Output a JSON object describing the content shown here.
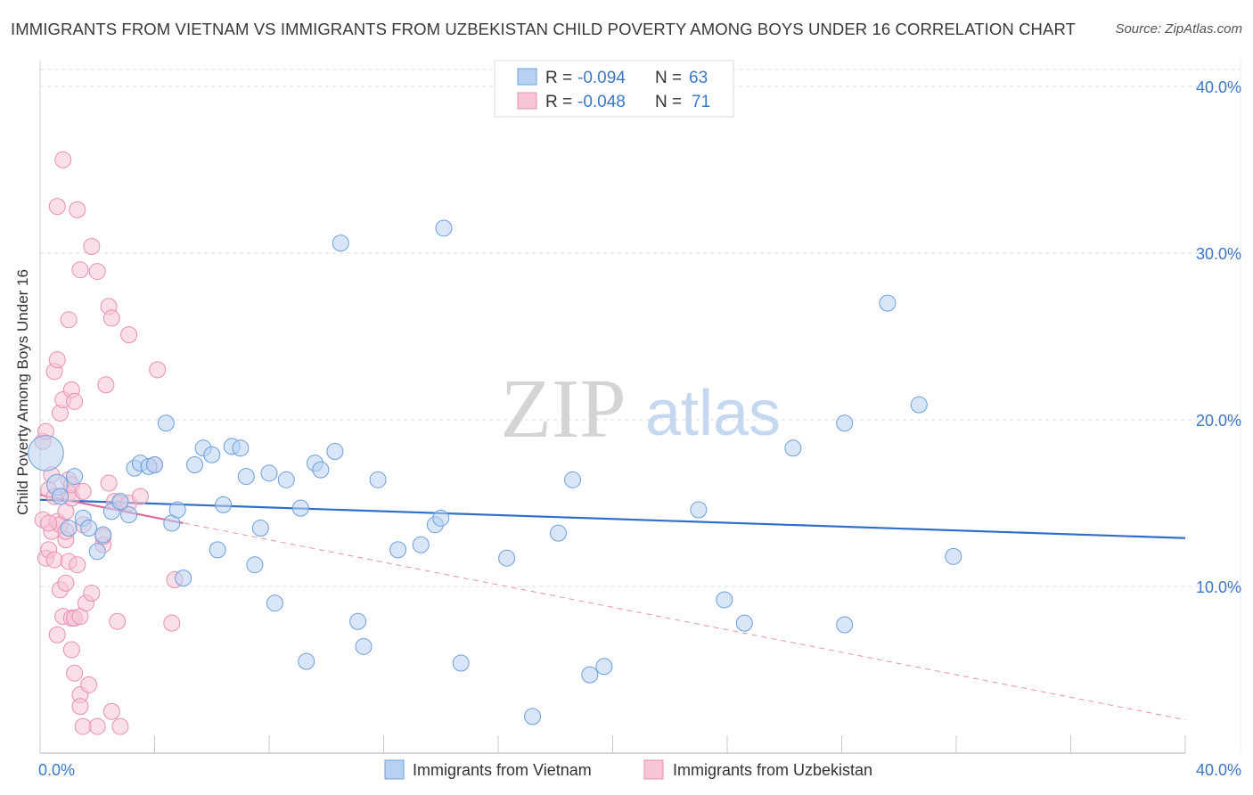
{
  "title": "IMMIGRANTS FROM VIETNAM VS IMMIGRANTS FROM UZBEKISTAN CHILD POVERTY AMONG BOYS UNDER 16 CORRELATION CHART",
  "source": "Source: ZipAtlas.com",
  "watermark": {
    "part1": "ZIP",
    "part2": "atlas"
  },
  "legend_top": [
    {
      "r_label": "R = ",
      "r_value": "-0.094",
      "n_label": "N = ",
      "n_value": "63"
    },
    {
      "r_label": "R = ",
      "r_value": "-0.048",
      "n_label": "N = ",
      "n_value": "71"
    }
  ],
  "chart_data": {
    "type": "scatter",
    "title": "IMMIGRANTS FROM VIETNAM VS IMMIGRANTS FROM UZBEKISTAN CHILD POVERTY AMONG BOYS UNDER 16 CORRELATION CHART",
    "xlabel": "",
    "ylabel": "Child Poverty Among Boys Under 16",
    "xlim": [
      0,
      40
    ],
    "ylim": [
      0,
      40
    ],
    "x_tick_labels": [
      "0.0%",
      "40.0%"
    ],
    "y_ticks": [
      10,
      20,
      30,
      40
    ],
    "y_tick_labels": [
      "10.0%",
      "20.0%",
      "30.0%",
      "40.0%"
    ],
    "grid": true,
    "legend_position": "bottom",
    "series": [
      {
        "name": "Immigrants from Vietnam",
        "color": "#6c9fdd",
        "fill": "#b8d1f2",
        "R": -0.094,
        "N": 63,
        "trend": {
          "x": [
            0,
            40
          ],
          "y": [
            15.2,
            12.9
          ],
          "style": "solid"
        },
        "points": [
          [
            0.2,
            18.0,
            22
          ],
          [
            0.6,
            16.1,
            13
          ],
          [
            0.7,
            15.4,
            10
          ],
          [
            1.2,
            16.6,
            10
          ],
          [
            1.0,
            13.5,
            10
          ],
          [
            1.5,
            14.1,
            10
          ],
          [
            1.7,
            13.5,
            10
          ],
          [
            2.0,
            12.1,
            10
          ],
          [
            2.2,
            13.1,
            10
          ],
          [
            2.5,
            14.5,
            10
          ],
          [
            2.8,
            15.1,
            10
          ],
          [
            3.1,
            14.3,
            10
          ],
          [
            3.3,
            17.1,
            10
          ],
          [
            3.5,
            17.4,
            10
          ],
          [
            3.8,
            17.2,
            10
          ],
          [
            4.0,
            17.3,
            10
          ],
          [
            4.4,
            19.8,
            10
          ],
          [
            4.6,
            13.8,
            10
          ],
          [
            4.8,
            14.6,
            10
          ],
          [
            5.0,
            10.5,
            10
          ],
          [
            5.4,
            17.3,
            10
          ],
          [
            5.7,
            18.3,
            10
          ],
          [
            6.0,
            17.9,
            10
          ],
          [
            6.2,
            12.2,
            10
          ],
          [
            6.4,
            14.9,
            10
          ],
          [
            6.7,
            18.4,
            10
          ],
          [
            7.0,
            18.3,
            10
          ],
          [
            7.2,
            16.6,
            10
          ],
          [
            7.5,
            11.3,
            10
          ],
          [
            7.7,
            13.5,
            10
          ],
          [
            8.0,
            16.8,
            10
          ],
          [
            8.2,
            9.0,
            10
          ],
          [
            8.6,
            16.4,
            10
          ],
          [
            9.1,
            14.7,
            10
          ],
          [
            9.3,
            5.5,
            10
          ],
          [
            9.6,
            17.4,
            10
          ],
          [
            9.8,
            17.0,
            10
          ],
          [
            10.3,
            18.1,
            10
          ],
          [
            10.5,
            30.6,
            10
          ],
          [
            11.1,
            7.9,
            10
          ],
          [
            11.3,
            6.4,
            10
          ],
          [
            11.8,
            16.4,
            10
          ],
          [
            12.5,
            12.2,
            10
          ],
          [
            13.3,
            12.5,
            10
          ],
          [
            13.8,
            13.7,
            10
          ],
          [
            14.0,
            14.1,
            10
          ],
          [
            14.1,
            31.5,
            10
          ],
          [
            14.7,
            5.4,
            10
          ],
          [
            16.3,
            11.7,
            10
          ],
          [
            17.2,
            2.2,
            10
          ],
          [
            18.1,
            13.2,
            10
          ],
          [
            18.6,
            16.4,
            10
          ],
          [
            19.2,
            4.7,
            10
          ],
          [
            19.7,
            5.2,
            10
          ],
          [
            23.0,
            14.6,
            10
          ],
          [
            23.9,
            9.2,
            10
          ],
          [
            24.6,
            7.8,
            10
          ],
          [
            26.3,
            18.3,
            10
          ],
          [
            28.1,
            19.8,
            10
          ],
          [
            28.1,
            7.7,
            10
          ],
          [
            29.6,
            27.0,
            10
          ],
          [
            30.7,
            20.9,
            10
          ],
          [
            31.9,
            11.8,
            10
          ]
        ]
      },
      {
        "name": "Immigrants from Uzbekistan",
        "color": "#e88fb0",
        "fill": "#f8c5d6",
        "R": -0.048,
        "N": 71,
        "trend": {
          "x": [
            0,
            5
          ],
          "y": [
            15.5,
            13.8
          ],
          "style": "solid"
        },
        "trend_extended": {
          "x": [
            0,
            40
          ],
          "y": [
            15.5,
            2.0
          ],
          "style": "dashed"
        },
        "points": [
          [
            0.1,
            18.7,
            10
          ],
          [
            0.1,
            14.0,
            10
          ],
          [
            0.2,
            11.7,
            10
          ],
          [
            0.2,
            19.3,
            10
          ],
          [
            0.3,
            12.2,
            10
          ],
          [
            0.3,
            15.8,
            10
          ],
          [
            0.4,
            16.7,
            10
          ],
          [
            0.4,
            13.3,
            10
          ],
          [
            0.5,
            11.6,
            10
          ],
          [
            0.5,
            15.4,
            10
          ],
          [
            0.5,
            22.9,
            10
          ],
          [
            0.6,
            13.9,
            10
          ],
          [
            0.6,
            7.1,
            10
          ],
          [
            0.6,
            32.8,
            10
          ],
          [
            0.6,
            23.6,
            10
          ],
          [
            0.7,
            13.7,
            10
          ],
          [
            0.7,
            20.4,
            10
          ],
          [
            0.7,
            9.8,
            10
          ],
          [
            0.8,
            21.2,
            10
          ],
          [
            0.8,
            35.6,
            10
          ],
          [
            0.8,
            8.2,
            10
          ],
          [
            0.9,
            14.5,
            10
          ],
          [
            0.9,
            12.8,
            10
          ],
          [
            0.9,
            13.3,
            10
          ],
          [
            0.9,
            10.2,
            10
          ],
          [
            1.0,
            26.0,
            10
          ],
          [
            1.0,
            16.4,
            10
          ],
          [
            1.0,
            15.6,
            10
          ],
          [
            1.0,
            11.5,
            10
          ],
          [
            1.1,
            15.3,
            10
          ],
          [
            1.1,
            16.1,
            10
          ],
          [
            1.1,
            6.2,
            10
          ],
          [
            1.1,
            8.1,
            10
          ],
          [
            1.2,
            4.8,
            10
          ],
          [
            1.1,
            21.8,
            10
          ],
          [
            1.2,
            21.1,
            10
          ],
          [
            1.2,
            8.1,
            10
          ],
          [
            1.3,
            11.3,
            10
          ],
          [
            1.3,
            32.6,
            10
          ],
          [
            1.4,
            29.0,
            10
          ],
          [
            1.4,
            3.5,
            10
          ],
          [
            1.4,
            2.8,
            10
          ],
          [
            1.4,
            8.2,
            10
          ],
          [
            1.5,
            15.7,
            10
          ],
          [
            1.6,
            9.0,
            10
          ],
          [
            1.5,
            1.6,
            10
          ],
          [
            1.7,
            4.1,
            10
          ],
          [
            1.8,
            30.4,
            10
          ],
          [
            1.8,
            9.6,
            10
          ],
          [
            2.0,
            28.9,
            10
          ],
          [
            2.0,
            1.6,
            10
          ],
          [
            2.2,
            12.5,
            10
          ],
          [
            2.2,
            13.0,
            10
          ],
          [
            2.3,
            22.1,
            10
          ],
          [
            2.4,
            26.8,
            10
          ],
          [
            2.4,
            16.2,
            10
          ],
          [
            2.5,
            26.1,
            10
          ],
          [
            2.5,
            2.5,
            10
          ],
          [
            2.6,
            15.1,
            10
          ],
          [
            2.7,
            7.9,
            10
          ],
          [
            2.8,
            15.0,
            10
          ],
          [
            2.8,
            1.6,
            10
          ],
          [
            3.1,
            25.1,
            10
          ],
          [
            3.1,
            15.0,
            10
          ],
          [
            3.5,
            15.4,
            10
          ],
          [
            4.1,
            23.0,
            10
          ],
          [
            4.0,
            17.3,
            10
          ],
          [
            4.6,
            7.8,
            10
          ],
          [
            4.7,
            10.4,
            10
          ],
          [
            1.5,
            13.7,
            10
          ],
          [
            0.3,
            13.8,
            10
          ]
        ]
      }
    ]
  },
  "legend_bottom": [
    "Immigrants from Vietnam",
    "Immigrants from Uzbekistan"
  ]
}
